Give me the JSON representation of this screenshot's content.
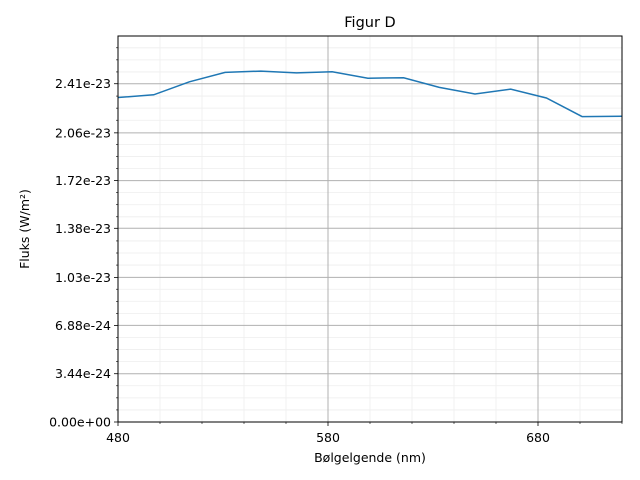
{
  "chart_data": {
    "type": "line",
    "title": "Figur D",
    "xlabel": "Bølgelgende (nm)",
    "ylabel": "Fluks (W/m²)",
    "xlim": [
      480,
      720
    ],
    "ylim": [
      0,
      2.75e-23
    ],
    "x_ticks": [
      480,
      580,
      680
    ],
    "x_tick_labels": [
      "480",
      "580",
      "680"
    ],
    "y_ticks": [
      0,
      3.44e-24,
      6.88e-24,
      1.03e-23,
      1.38e-23,
      1.72e-23,
      2.06e-23,
      2.41e-23
    ],
    "y_tick_labels": [
      "0.00e+00",
      "3.44e-24",
      "6.88e-24",
      "1.03e-23",
      "1.38e-23",
      "1.72e-23",
      "2.06e-23",
      "2.41e-23"
    ],
    "grid": true,
    "minor_grid": true,
    "series_color": "#1f77b4",
    "series": [
      {
        "x": [
          480,
          497,
          514,
          531,
          548,
          565,
          582,
          599,
          616,
          633,
          650,
          667,
          684,
          701,
          720
        ],
        "values": [
          2.312e-23,
          2.331e-23,
          2.424e-23,
          2.491e-23,
          2.5e-23,
          2.487e-23,
          2.496e-23,
          2.449e-23,
          2.452e-23,
          2.384e-23,
          2.337e-23,
          2.372e-23,
          2.308e-23,
          2.176e-23,
          2.178e-23
        ]
      }
    ]
  }
}
